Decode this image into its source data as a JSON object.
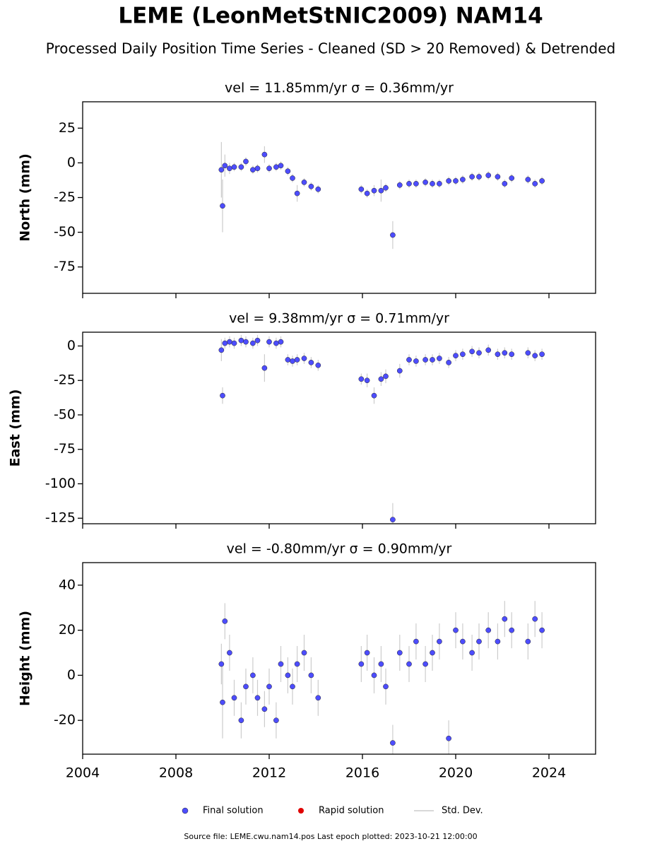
{
  "title": "LEME (LeonMetStNIC2009) NAM14",
  "subtitle": "Processed Daily Position Time Series - Cleaned (SD > 20 Removed) & Detrended",
  "chart_data": [
    {
      "type": "scatter",
      "title": "vel = 11.85mm/yr   σ = 0.36mm/yr",
      "ylabel": "North (mm)",
      "x": [
        2009.95,
        2010.0,
        2010.1,
        2010.3,
        2010.5,
        2010.8,
        2011.0,
        2011.3,
        2011.5,
        2011.8,
        2012.0,
        2012.3,
        2012.5,
        2012.8,
        2013.0,
        2013.2,
        2013.5,
        2013.8,
        2014.1,
        2015.95,
        2016.2,
        2016.5,
        2016.8,
        2017.0,
        2017.3,
        2017.6,
        2018.0,
        2018.3,
        2018.7,
        2019.0,
        2019.3,
        2019.7,
        2020.0,
        2020.3,
        2020.7,
        2021.0,
        2021.4,
        2021.8,
        2022.1,
        2022.4,
        2023.1,
        2023.4,
        2023.7
      ],
      "series": [
        {
          "color": "#4d4dff",
          "values": [
            -5,
            -31,
            -2,
            -4,
            -3,
            -3,
            1,
            -5,
            -4,
            6,
            -4,
            -3,
            -2,
            -6,
            -11,
            -22,
            -14,
            -17,
            -19,
            -19,
            -22,
            -20,
            -20,
            -18,
            -52,
            -16,
            -15,
            -15,
            -14,
            -15,
            -15,
            -13,
            -13,
            -12,
            -10,
            -10,
            -9,
            -10,
            -15,
            -11,
            -12,
            -15,
            -13
          ],
          "errors": [
            20,
            19,
            8,
            4,
            3,
            3,
            3,
            3,
            3,
            6,
            3,
            3,
            3,
            3,
            3,
            6,
            3,
            3,
            3,
            3,
            3,
            4,
            8,
            3,
            10,
            3,
            3,
            3,
            3,
            3,
            3,
            3,
            3,
            3,
            3,
            3,
            3,
            3,
            3,
            3,
            3,
            3,
            3
          ]
        }
      ],
      "xlim": [
        2004,
        2026
      ],
      "xticks": [
        2004,
        2008,
        2012,
        2016,
        2020,
        2024
      ],
      "ylim": [
        -94,
        44
      ],
      "yticks": [
        25,
        0,
        -25,
        -50,
        -75
      ]
    },
    {
      "type": "scatter",
      "title": "vel = 9.38mm/yr   σ = 0.71mm/yr",
      "ylabel": "East (mm)",
      "x": [
        2009.95,
        2010.0,
        2010.1,
        2010.3,
        2010.5,
        2010.8,
        2011.0,
        2011.3,
        2011.5,
        2011.8,
        2012.0,
        2012.3,
        2012.5,
        2012.8,
        2013.0,
        2013.2,
        2013.5,
        2013.8,
        2014.1,
        2015.95,
        2016.2,
        2016.5,
        2016.8,
        2017.0,
        2017.3,
        2017.6,
        2018.0,
        2018.3,
        2018.7,
        2019.0,
        2019.3,
        2019.7,
        2020.0,
        2020.3,
        2020.7,
        2021.0,
        2021.4,
        2021.8,
        2022.1,
        2022.4,
        2023.1,
        2023.4,
        2023.7
      ],
      "series": [
        {
          "color": "#4d4dff",
          "values": [
            -3,
            -36,
            2,
            3,
            2,
            4,
            3,
            2,
            4,
            -16,
            3,
            2,
            3,
            -10,
            -11,
            -10,
            -9,
            -12,
            -14,
            -24,
            -25,
            -36,
            -24,
            -22,
            -126,
            -18,
            -10,
            -11,
            -10,
            -10,
            -9,
            -12,
            -7,
            -6,
            -4,
            -5,
            -3,
            -6,
            -5,
            -6,
            -5,
            -7,
            -6
          ],
          "errors": [
            8,
            6,
            4,
            4,
            4,
            4,
            4,
            4,
            4,
            10,
            4,
            4,
            4,
            4,
            4,
            4,
            4,
            4,
            4,
            4,
            5,
            6,
            5,
            5,
            12,
            5,
            4,
            4,
            4,
            4,
            4,
            4,
            4,
            4,
            4,
            4,
            4,
            4,
            4,
            4,
            4,
            4,
            4
          ]
        }
      ],
      "xlim": [
        2004,
        2026
      ],
      "xticks": [
        2004,
        2008,
        2012,
        2016,
        2020,
        2024
      ],
      "ylim": [
        -129,
        10
      ],
      "yticks": [
        0,
        -25,
        -50,
        -75,
        -100,
        -125
      ]
    },
    {
      "type": "scatter",
      "title": "vel = -0.80mm/yr   σ = 0.90mm/yr",
      "ylabel": "Height (mm)",
      "x": [
        2009.95,
        2010.0,
        2010.1,
        2010.3,
        2010.5,
        2010.8,
        2011.0,
        2011.3,
        2011.5,
        2011.8,
        2012.0,
        2012.3,
        2012.5,
        2012.8,
        2013.0,
        2013.2,
        2013.5,
        2013.8,
        2014.1,
        2015.95,
        2016.2,
        2016.5,
        2016.8,
        2017.0,
        2017.3,
        2017.6,
        2018.0,
        2018.3,
        2018.7,
        2019.0,
        2019.3,
        2019.7,
        2020.0,
        2020.3,
        2020.7,
        2021.0,
        2021.4,
        2021.8,
        2022.1,
        2022.4,
        2023.1,
        2023.4,
        2023.7
      ],
      "series": [
        {
          "color": "#4d4dff",
          "values": [
            5,
            -12,
            24,
            10,
            -10,
            -20,
            -5,
            0,
            -10,
            -15,
            -5,
            -20,
            5,
            0,
            -5,
            5,
            10,
            0,
            -10,
            5,
            10,
            0,
            5,
            -5,
            -30,
            10,
            5,
            15,
            5,
            10,
            15,
            -28,
            20,
            15,
            10,
            15,
            20,
            15,
            25,
            20,
            15,
            25,
            20
          ],
          "errors": [
            9,
            16,
            8,
            8,
            8,
            8,
            8,
            8,
            8,
            8,
            8,
            8,
            8,
            8,
            8,
            8,
            8,
            8,
            8,
            8,
            8,
            8,
            8,
            8,
            8,
            8,
            8,
            8,
            8,
            8,
            8,
            8,
            8,
            8,
            8,
            8,
            8,
            8,
            8,
            8,
            8,
            8,
            8
          ]
        }
      ],
      "xlim": [
        2004,
        2026
      ],
      "xticks": [
        2004,
        2008,
        2012,
        2016,
        2020,
        2024
      ],
      "ylim": [
        -35,
        50
      ],
      "yticks": [
        40,
        20,
        0,
        -20
      ]
    }
  ],
  "legend": [
    {
      "label": "Final solution",
      "color": "#4d4dff"
    },
    {
      "label": "Rapid solution",
      "color": "#e00000"
    },
    {
      "label": "Std. Dev.",
      "color": "#cccccc"
    }
  ],
  "footer": "Source file: LEME.cwu.nam14.pos  Last epoch plotted: 2023-10-21 12:00:00"
}
